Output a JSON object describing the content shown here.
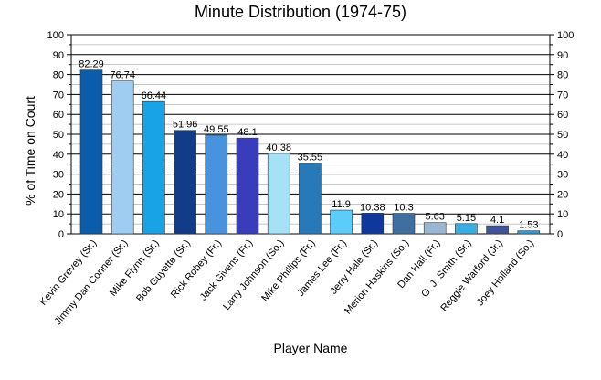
{
  "chart_data": {
    "type": "bar",
    "title": "Minute Distribution (1974-75)",
    "xlabel": "Player Name",
    "ylabel": "% of Time on Court",
    "ylim": [
      0,
      100
    ],
    "yticks": [
      "0",
      "10",
      "20",
      "30",
      "40",
      "50",
      "60",
      "70",
      "80",
      "90",
      "100"
    ],
    "grid": true,
    "categories": [
      "Kevin Grevey (Sr.)",
      "Jimmy Dan Conner (Sr.)",
      "Mike Flynn (Sr.)",
      "Bob Guyette (Sr.)",
      "Rick Robey (Fr.)",
      "Jack Givens (Fr.)",
      "Larry Johnson (So.)",
      "Mike Phillips (Fr.)",
      "James Lee (Fr.)",
      "Jerry Hale (Sr.)",
      "Merion Haskins (So.)",
      "Dan Hall (Fr.)",
      "G. J. Smith (Sr.)",
      "Reggie Warford (Jr.)",
      "Joey Holland (So.)"
    ],
    "values": [
      82.29,
      76.74,
      66.44,
      51.96,
      49.55,
      48.1,
      40.38,
      35.55,
      11.9,
      10.38,
      10.3,
      5.63,
      5.15,
      4.1,
      1.53
    ],
    "value_labels": [
      "82.29",
      "76.74",
      "66.44",
      "51.96",
      "49.55",
      "48.1",
      "40.38",
      "35.55",
      "11.9",
      "10.38",
      "10.3",
      "5.63",
      "5.15",
      "4.1",
      "1.53"
    ],
    "colors": [
      "#0b5cab",
      "#9fcdf1",
      "#17a3e6",
      "#123b88",
      "#4793dd",
      "#3a3dbb",
      "#a6e2f6",
      "#2879b8",
      "#5ccdfb",
      "#10379b",
      "#3e6fa0",
      "#9ab7d2",
      "#3aaee0",
      "#3f5597",
      "#2e9dd7"
    ]
  }
}
